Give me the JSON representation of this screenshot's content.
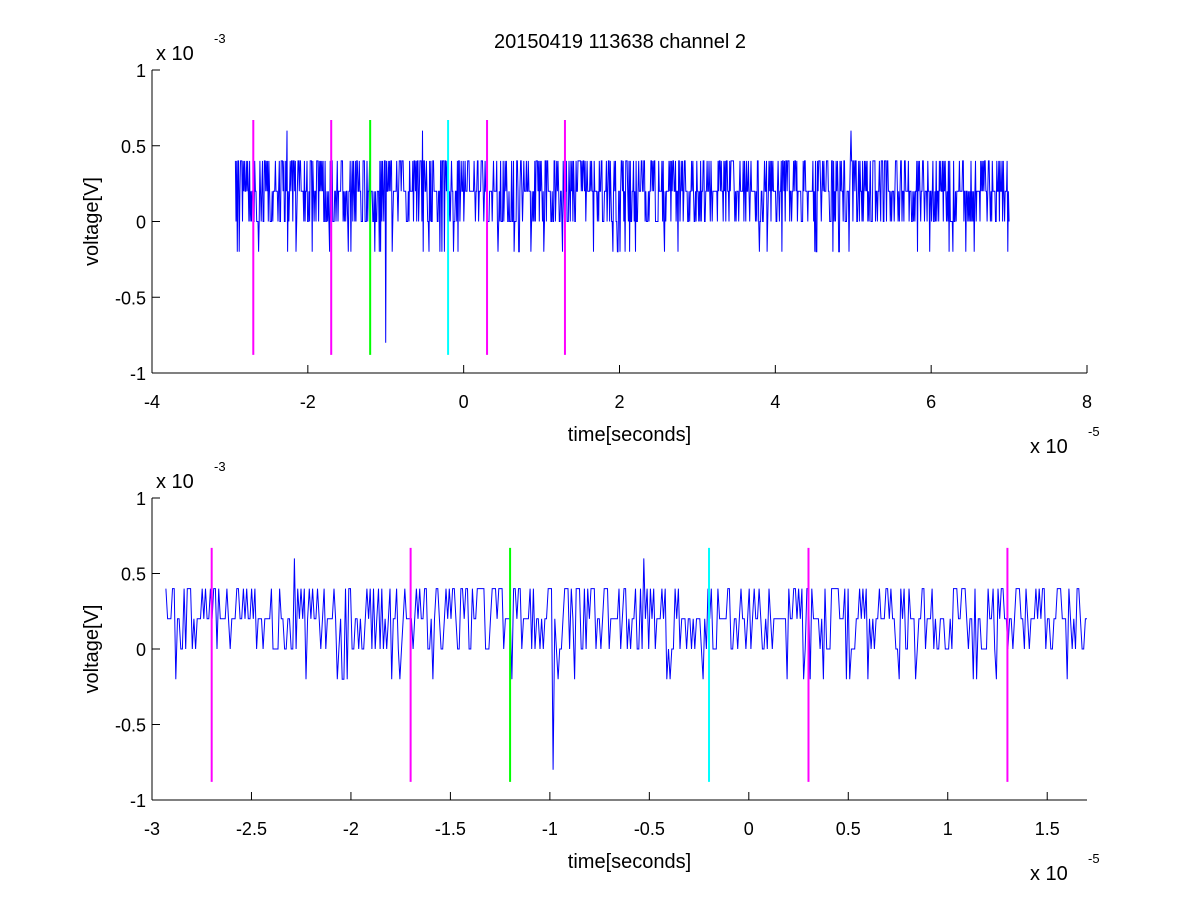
{
  "title": "20150419 113638 channel 2",
  "chart_data": [
    {
      "type": "line",
      "xlabel": "time[seconds]",
      "ylabel": "voltage[V]",
      "x_multiplier": "x 10",
      "x_exponent": "-5",
      "y_multiplier": "x 10",
      "y_exponent": "-3",
      "xlim": [
        -4,
        8
      ],
      "ylim": [
        -1,
        1
      ],
      "xticks": [
        -4,
        -2,
        0,
        2,
        4,
        6,
        8
      ],
      "xtick_labels": [
        "-4",
        "-2",
        "0",
        "2",
        "4",
        "6",
        "8"
      ],
      "yticks": [
        -1,
        -0.5,
        0,
        0.5,
        1
      ],
      "ytick_labels": [
        "-1",
        "-0.5",
        "0",
        "0.5",
        "1"
      ],
      "signal": {
        "color": "#0000ff",
        "x_start": -2.93,
        "x_end": 7.0,
        "points": 1200,
        "levels": [
          -0.8,
          -0.2,
          0,
          0.2,
          0.4,
          0.6
        ],
        "baseline": 0.2,
        "spikes": [
          {
            "x": -2.27,
            "y": 0.6
          },
          {
            "x": -1.0,
            "y": -0.8
          },
          {
            "x": -0.53,
            "y": 0.6
          },
          {
            "x": 4.97,
            "y": 0.6
          },
          {
            "x": -2.88,
            "y": -0.2
          }
        ]
      },
      "markers": [
        {
          "x": -2.7,
          "y0": -0.88,
          "y1": 0.67,
          "color": "#ff00ff"
        },
        {
          "x": -1.7,
          "y0": -0.88,
          "y1": 0.67,
          "color": "#ff00ff"
        },
        {
          "x": -1.2,
          "y0": -0.88,
          "y1": 0.67,
          "color": "#00ff00"
        },
        {
          "x": -0.2,
          "y0": -0.88,
          "y1": 0.67,
          "color": "#00ffff"
        },
        {
          "x": 0.3,
          "y0": -0.88,
          "y1": 0.67,
          "color": "#ff00ff"
        },
        {
          "x": 1.3,
          "y0": -0.88,
          "y1": 0.67,
          "color": "#ff00ff"
        }
      ]
    },
    {
      "type": "line",
      "xlabel": "time[seconds]",
      "ylabel": "voltage[V]",
      "x_multiplier": "x 10",
      "x_exponent": "-5",
      "y_multiplier": "x 10",
      "y_exponent": "-3",
      "xlim": [
        -3.0,
        1.7
      ],
      "ylim": [
        -1,
        1
      ],
      "xticks": [
        -3,
        -2.5,
        -2,
        -1.5,
        -1,
        -0.5,
        0,
        0.5,
        1,
        1.5
      ],
      "xtick_labels": [
        "-3",
        "-2.5",
        "-2",
        "-1.5",
        "-1",
        "-0.5",
        "0",
        "0.5",
        "1",
        "1.5"
      ],
      "yticks": [
        -1,
        -0.5,
        0,
        0.5,
        1
      ],
      "ytick_labels": [
        "-1",
        "-0.5",
        "0",
        "0.5",
        "1"
      ],
      "signal": {
        "color": "#0000ff",
        "x_start": -2.93,
        "x_end": 1.7,
        "points": 560,
        "levels": [
          -0.8,
          -0.2,
          0,
          0.2,
          0.4,
          0.6
        ],
        "baseline": 0.2,
        "spikes": [
          {
            "x": -2.28,
            "y": 0.6
          },
          {
            "x": -0.98,
            "y": -0.8
          },
          {
            "x": -0.53,
            "y": 0.6
          },
          {
            "x": -2.88,
            "y": -0.2
          }
        ]
      },
      "markers": [
        {
          "x": -2.7,
          "y0": -0.88,
          "y1": 0.67,
          "color": "#ff00ff"
        },
        {
          "x": -1.7,
          "y0": -0.88,
          "y1": 0.67,
          "color": "#ff00ff"
        },
        {
          "x": -1.2,
          "y0": -0.88,
          "y1": 0.67,
          "color": "#00ff00"
        },
        {
          "x": -0.2,
          "y0": -0.88,
          "y1": 0.67,
          "color": "#00ffff"
        },
        {
          "x": 0.3,
          "y0": -0.88,
          "y1": 0.67,
          "color": "#ff00ff"
        },
        {
          "x": 1.3,
          "y0": -0.88,
          "y1": 0.67,
          "color": "#ff00ff"
        }
      ]
    }
  ]
}
